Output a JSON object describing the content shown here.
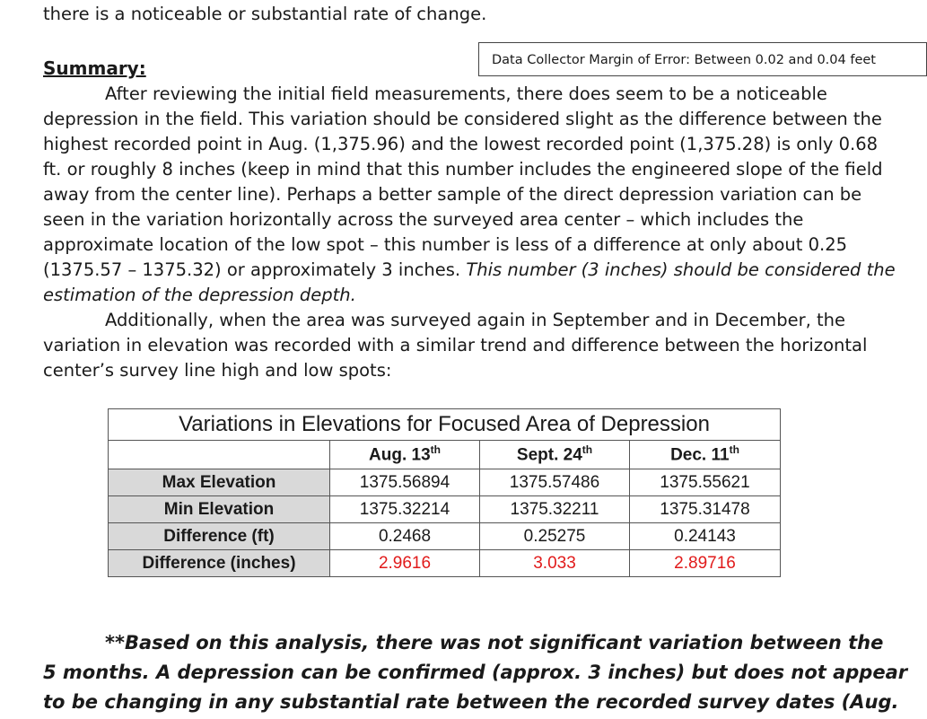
{
  "top_line": "there is a noticeable or substantial rate of change.",
  "margin_box": "Data Collector Margin of Error: Between 0.02 and 0.04 feet",
  "summary_heading": "Summary:",
  "paragraph1": [
    "After reviewing the initial field measurements, there does seem to be a noticeable",
    "depression in the field. This variation should be considered slight as the difference between the",
    "highest recorded point in Aug. (1,375.96) and the lowest recorded point (1,375.28) is only 0.68",
    "ft. or roughly 8 inches (keep in mind that this number includes the engineered slope of the field",
    "away from the center line). Perhaps a better sample of the direct depression variation can be",
    "seen in the variation horizontally across the surveyed area center – which includes the",
    "approximate location of the low spot – this number is less of a difference at only about 0.25",
    "(1375.57 – 1375.32) or approximately 3 inches. "
  ],
  "paragraph1_italic_a": "This number (3 inches) should be considered the",
  "paragraph1_italic_b": "estimation of the depression depth.",
  "paragraph2": [
    "Additionally, when the area was surveyed again in September and in December, the",
    "variation in elevation was recorded with a similar trend and difference between the horizontal",
    "center’s survey line high and low spots:"
  ],
  "table": {
    "title": "Variations in Elevations for Focused Area of Depression",
    "columns": [
      {
        "label": "Aug. 13",
        "sup": "th"
      },
      {
        "label": "Sept. 24",
        "sup": "th"
      },
      {
        "label": "Dec. 11",
        "sup": "th"
      }
    ],
    "rows": [
      {
        "label": "Max Elevation",
        "values": [
          "1375.56894",
          "1375.57486",
          "1375.55621"
        ]
      },
      {
        "label": "Min Elevation",
        "values": [
          "1375.32214",
          "1375.32211",
          "1375.31478"
        ]
      },
      {
        "label": "Difference (ft)",
        "values": [
          "0.2468",
          "0.25275",
          "0.24143"
        ]
      },
      {
        "label": "Difference (inches)",
        "values": [
          "2.9616",
          "3.033",
          "2.89716"
        ]
      }
    ],
    "highlight_color": "#e11b1b",
    "label_bg": "#d9d9d9"
  },
  "conclusion": [
    "**Based on this analysis, there was not significant variation between the",
    "5 months. A depression can be confirmed (approx. 3 inches) but does not appear",
    "to be changing in any substantial rate between the recorded survey dates (Aug."
  ]
}
